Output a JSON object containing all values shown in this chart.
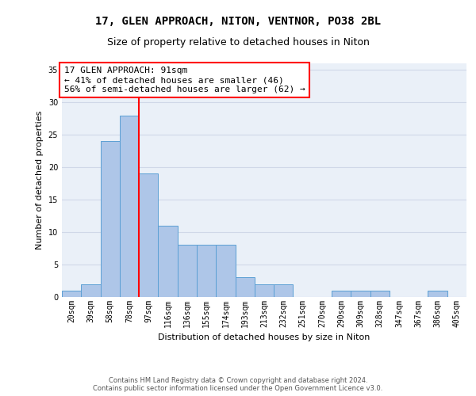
{
  "title1": "17, GLEN APPROACH, NITON, VENTNOR, PO38 2BL",
  "title2": "Size of property relative to detached houses in Niton",
  "xlabel": "Distribution of detached houses by size in Niton",
  "ylabel": "Number of detached properties",
  "bin_labels": [
    "20sqm",
    "39sqm",
    "58sqm",
    "78sqm",
    "97sqm",
    "116sqm",
    "136sqm",
    "155sqm",
    "174sqm",
    "193sqm",
    "213sqm",
    "232sqm",
    "251sqm",
    "270sqm",
    "290sqm",
    "309sqm",
    "328sqm",
    "347sqm",
    "367sqm",
    "386sqm",
    "405sqm"
  ],
  "bar_heights": [
    1,
    2,
    24,
    28,
    19,
    11,
    8,
    8,
    8,
    3,
    2,
    2,
    0,
    0,
    1,
    1,
    1,
    0,
    0,
    1,
    0
  ],
  "bar_color": "#aec6e8",
  "bar_edge_color": "#5a9fd4",
  "vline_color": "red",
  "annotation_line1": "17 GLEN APPROACH: 91sqm",
  "annotation_line2": "← 41% of detached houses are smaller (46)",
  "annotation_line3": "56% of semi-detached houses are larger (62) →",
  "annotation_box_color": "white",
  "annotation_box_edge_color": "red",
  "ylim": [
    0,
    36
  ],
  "yticks": [
    0,
    5,
    10,
    15,
    20,
    25,
    30,
    35
  ],
  "grid_color": "#d0d8e8",
  "bg_color": "#eaf0f8",
  "footer_text": "Contains HM Land Registry data © Crown copyright and database right 2024.\nContains public sector information licensed under the Open Government Licence v3.0.",
  "title1_fontsize": 10,
  "title2_fontsize": 9,
  "axis_label_fontsize": 8,
  "tick_fontsize": 7,
  "annotation_fontsize": 8,
  "footer_fontsize": 6
}
